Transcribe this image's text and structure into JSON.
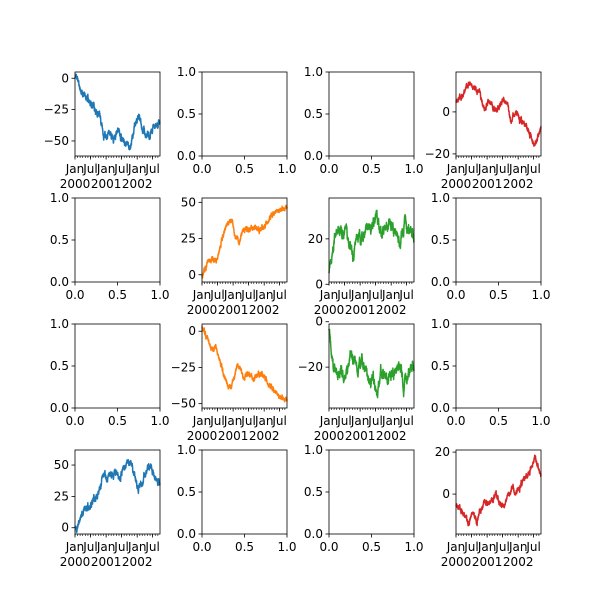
{
  "chart_data": [
    {
      "type": "line",
      "position": "row-1-col-1",
      "color": "#1f77b4",
      "empty": false,
      "x_range": [
        "2000-01-01",
        "2002-09-26"
      ],
      "ylim": [
        -62,
        5
      ],
      "yticks": [
        0,
        -25,
        -50
      ],
      "ytick_labels": [
        "0",
        "−25",
        "−50"
      ],
      "x_major_labels": [
        {
          "date": "2000-01-01",
          "label": "Jan\n2000"
        },
        {
          "date": "2000-07-01",
          "label": "Jul"
        },
        {
          "date": "2001-01-01",
          "label": "Jan\n2001"
        },
        {
          "date": "2001-07-01",
          "label": "Jul"
        },
        {
          "date": "2002-01-01",
          "label": "Jan\n2002"
        },
        {
          "date": "2002-07-01",
          "label": "Jul"
        }
      ],
      "trend": {
        "x": [
          "2000-01-01",
          "2000-01-20",
          "2000-03-10",
          "2000-05-01",
          "2000-06-15",
          "2000-08-01",
          "2000-09-10",
          "2000-10-20",
          "2000-12-01",
          "2001-01-20",
          "2001-03-01",
          "2001-04-15",
          "2001-06-01",
          "2001-07-15",
          "2001-09-01",
          "2001-10-15",
          "2001-12-01",
          "2002-01-15",
          "2002-03-01",
          "2002-04-15",
          "2002-06-01",
          "2002-07-15",
          "2002-09-26"
        ],
        "y": [
          0,
          2,
          -10,
          -15,
          -17,
          -22,
          -26,
          -30,
          -45,
          -42,
          -44,
          -46,
          -40,
          -48,
          -52,
          -54,
          -40,
          -30,
          -38,
          -45,
          -48,
          -40,
          -35
        ]
      },
      "noise_amplitude": 3.0,
      "seed": 11
    },
    {
      "type": "empty",
      "position": "row-1-col-2",
      "empty": true,
      "xlim": [
        0,
        1
      ],
      "ylim": [
        0,
        1
      ],
      "xticks": [
        "0.0",
        "0.5",
        "1.0"
      ],
      "yticks": [
        "0.0",
        "0.5",
        "1.0"
      ]
    },
    {
      "type": "empty",
      "position": "row-1-col-3",
      "empty": true,
      "xlim": [
        0,
        1
      ],
      "ylim": [
        0,
        1
      ],
      "xticks": [
        "0.0",
        "0.5",
        "1.0"
      ],
      "yticks": [
        "0.0",
        "0.5",
        "1.0"
      ]
    },
    {
      "type": "line",
      "position": "row-1-col-4",
      "color": "#d62728",
      "empty": false,
      "x_range": [
        "2000-01-01",
        "2002-09-26"
      ],
      "ylim": [
        -21,
        19
      ],
      "yticks": [
        0,
        -20
      ],
      "ytick_labels": [
        "0",
        "−20"
      ],
      "x_major_labels": [
        {
          "date": "2000-01-01",
          "label": "Jan\n2000"
        },
        {
          "date": "2000-07-01",
          "label": "Jul"
        },
        {
          "date": "2001-01-01",
          "label": "Jan\n2001"
        },
        {
          "date": "2001-07-01",
          "label": "Jul"
        },
        {
          "date": "2002-01-01",
          "label": "Jan\n2002"
        },
        {
          "date": "2002-07-01",
          "label": "Jul"
        }
      ],
      "trend": {
        "x": [
          "2000-01-01",
          "2000-03-15",
          "2000-06-01",
          "2000-07-15",
          "2000-09-01",
          "2000-10-15",
          "2000-12-01",
          "2001-01-15",
          "2001-03-01",
          "2001-04-15",
          "2001-06-01",
          "2001-07-15",
          "2001-09-01",
          "2001-10-15",
          "2001-12-01",
          "2002-01-15",
          "2002-03-01",
          "2002-04-15",
          "2002-06-01",
          "2002-07-15",
          "2002-09-26"
        ],
        "y": [
          5,
          8,
          14,
          10,
          12,
          8,
          2,
          5,
          3,
          0,
          4,
          6,
          2,
          -4,
          0,
          -3,
          -6,
          -8,
          -12,
          -17,
          -8
        ]
      },
      "noise_amplitude": 1.5,
      "seed": 21
    },
    {
      "type": "empty",
      "position": "row-2-col-1",
      "empty": true,
      "xlim": [
        0,
        1
      ],
      "ylim": [
        0,
        1
      ],
      "xticks": [
        "0.0",
        "0.5",
        "1.0"
      ],
      "yticks": [
        "0.0",
        "0.5",
        "1.0"
      ]
    },
    {
      "type": "line",
      "position": "row-2-col-2",
      "color": "#ff7f0e",
      "empty": false,
      "x_range": [
        "2000-01-01",
        "2002-09-26"
      ],
      "ylim": [
        -5,
        53
      ],
      "yticks": [
        0,
        25,
        50
      ],
      "ytick_labels": [
        "0",
        "25",
        "50"
      ],
      "x_major_labels": [
        {
          "date": "2000-01-01",
          "label": "Jan\n2000"
        },
        {
          "date": "2000-07-01",
          "label": "Jul"
        },
        {
          "date": "2001-01-01",
          "label": "Jan\n2001"
        },
        {
          "date": "2001-07-01",
          "label": "Jul"
        },
        {
          "date": "2002-01-01",
          "label": "Jan\n2002"
        },
        {
          "date": "2002-07-01",
          "label": "Jul"
        }
      ],
      "trend": {
        "x": [
          "2000-01-01",
          "2000-02-01",
          "2000-03-15",
          "2000-05-01",
          "2000-06-15",
          "2000-08-01",
          "2000-09-15",
          "2000-11-01",
          "2000-12-15",
          "2001-02-01",
          "2001-03-15",
          "2001-05-01",
          "2001-07-01",
          "2001-09-01",
          "2001-11-01",
          "2002-01-01",
          "2002-03-01",
          "2002-05-01",
          "2002-07-01",
          "2002-09-26"
        ],
        "y": [
          -2,
          2,
          8,
          12,
          10,
          20,
          30,
          37,
          38,
          26,
          23,
          32,
          30,
          33,
          30,
          32,
          38,
          42,
          45,
          47
        ]
      },
      "noise_amplitude": 2.0,
      "seed": 31
    },
    {
      "type": "line",
      "position": "row-2-col-3",
      "color": "#2ca02c",
      "empty": false,
      "x_range": [
        "2000-01-01",
        "2002-09-26"
      ],
      "ylim": [
        1,
        38
      ],
      "yticks": [
        0,
        20
      ],
      "ytick_labels": [
        "0",
        "20"
      ],
      "x_major_labels": [
        {
          "date": "2000-01-01",
          "label": "Jan\n2000"
        },
        {
          "date": "2000-07-01",
          "label": "Jul"
        },
        {
          "date": "2001-01-01",
          "label": "Jan\n2001"
        },
        {
          "date": "2001-07-01",
          "label": "Jul"
        },
        {
          "date": "2002-01-01",
          "label": "Jan\n2002"
        },
        {
          "date": "2002-07-01",
          "label": "Jul"
        }
      ],
      "trend": {
        "x": [
          "2000-01-01",
          "2000-01-20",
          "2000-03-01",
          "2000-04-15",
          "2000-06-01",
          "2000-07-15",
          "2000-09-01",
          "2000-10-15",
          "2000-12-01",
          "2001-01-15",
          "2001-03-01",
          "2001-04-15",
          "2001-06-01",
          "2001-07-15",
          "2001-09-01",
          "2001-10-15",
          "2001-12-01",
          "2002-01-15",
          "2002-03-01",
          "2002-04-15",
          "2002-06-01",
          "2002-07-15",
          "2002-09-26"
        ],
        "y": [
          4,
          10,
          20,
          24,
          22,
          25,
          16,
          14,
          22,
          18,
          22,
          26,
          25,
          32,
          22,
          24,
          26,
          24,
          22,
          18,
          28,
          24,
          20
        ]
      },
      "noise_amplitude": 2.5,
      "seed": 41
    },
    {
      "type": "empty",
      "position": "row-2-col-4",
      "empty": true,
      "xlim": [
        0,
        1
      ],
      "ylim": [
        0,
        1
      ],
      "xticks": [
        "0.0",
        "0.5",
        "1.0"
      ],
      "yticks": [
        "0.0",
        "0.5",
        "1.0"
      ]
    },
    {
      "type": "empty",
      "position": "row-3-col-1",
      "empty": true,
      "xlim": [
        0,
        1
      ],
      "ylim": [
        0,
        1
      ],
      "xticks": [
        "0.0",
        "0.5",
        "1.0"
      ],
      "yticks": [
        "0.0",
        "0.5",
        "1.0"
      ]
    },
    {
      "type": "line",
      "position": "row-3-col-2",
      "color": "#ff7f0e",
      "empty": false,
      "x_range": [
        "2000-01-01",
        "2002-09-26"
      ],
      "ylim": [
        -53,
        5
      ],
      "yticks": [
        0,
        -25,
        -50
      ],
      "ytick_labels": [
        "0",
        "−25",
        "−50"
      ],
      "x_major_labels": [
        {
          "date": "2000-01-01",
          "label": "Jan\n2000"
        },
        {
          "date": "2000-07-01",
          "label": "Jul"
        },
        {
          "date": "2001-01-01",
          "label": "Jan\n2001"
        },
        {
          "date": "2001-07-01",
          "label": "Jul"
        },
        {
          "date": "2002-01-01",
          "label": "Jan\n2002"
        },
        {
          "date": "2002-07-01",
          "label": "Jul"
        }
      ],
      "trend": {
        "x": [
          "2000-01-01",
          "2000-02-01",
          "2000-03-15",
          "2000-05-01",
          "2000-06-15",
          "2000-08-01",
          "2000-09-15",
          "2000-11-01",
          "2000-12-15",
          "2001-02-01",
          "2001-03-15",
          "2001-05-01",
          "2001-07-01",
          "2001-09-01",
          "2001-11-01",
          "2002-01-01",
          "2002-03-01",
          "2002-05-01",
          "2002-07-01",
          "2002-09-26"
        ],
        "y": [
          2,
          -2,
          -8,
          -12,
          -10,
          -20,
          -30,
          -37,
          -38,
          -26,
          -23,
          -32,
          -30,
          -33,
          -30,
          -32,
          -38,
          -42,
          -45,
          -47
        ]
      },
      "noise_amplitude": 2.0,
      "seed": 31
    },
    {
      "type": "line",
      "position": "row-3-col-3",
      "color": "#2ca02c",
      "empty": false,
      "x_range": [
        "2000-01-01",
        "2002-09-26"
      ],
      "ylim": [
        -38,
        -1
      ],
      "yticks": [
        0,
        -20
      ],
      "ytick_labels": [
        "0",
        "−20"
      ],
      "x_major_labels": [
        {
          "date": "2000-01-01",
          "label": "Jan\n2000"
        },
        {
          "date": "2000-07-01",
          "label": "Jul"
        },
        {
          "date": "2001-01-01",
          "label": "Jan\n2001"
        },
        {
          "date": "2001-07-01",
          "label": "Jul"
        },
        {
          "date": "2002-01-01",
          "label": "Jan\n2002"
        },
        {
          "date": "2002-07-01",
          "label": "Jul"
        }
      ],
      "trend": {
        "x": [
          "2000-01-01",
          "2000-01-20",
          "2000-03-01",
          "2000-04-15",
          "2000-06-01",
          "2000-07-15",
          "2000-09-01",
          "2000-10-15",
          "2000-12-01",
          "2001-01-15",
          "2001-03-01",
          "2001-04-15",
          "2001-06-01",
          "2001-07-15",
          "2001-09-01",
          "2001-10-15",
          "2001-12-01",
          "2002-01-15",
          "2002-03-01",
          "2002-04-15",
          "2002-06-01",
          "2002-07-15",
          "2002-09-26"
        ],
        "y": [
          -4,
          -10,
          -20,
          -24,
          -22,
          -25,
          -16,
          -14,
          -22,
          -18,
          -22,
          -26,
          -25,
          -32,
          -22,
          -24,
          -26,
          -24,
          -22,
          -18,
          -28,
          -24,
          -20
        ]
      },
      "noise_amplitude": 2.5,
      "seed": 41
    },
    {
      "type": "empty",
      "position": "row-3-col-4",
      "empty": true,
      "xlim": [
        0,
        1
      ],
      "ylim": [
        0,
        1
      ],
      "xticks": [
        "0.0",
        "0.5",
        "1.0"
      ],
      "yticks": [
        "0.0",
        "0.5",
        "1.0"
      ]
    },
    {
      "type": "line",
      "position": "row-4-col-1",
      "color": "#1f77b4",
      "empty": false,
      "x_range": [
        "2000-01-01",
        "2002-09-26"
      ],
      "ylim": [
        -5,
        62
      ],
      "yticks": [
        0,
        25,
        50
      ],
      "ytick_labels": [
        "0",
        "25",
        "50"
      ],
      "x_major_labels": [
        {
          "date": "2000-01-01",
          "label": "Jan\n2000"
        },
        {
          "date": "2000-07-01",
          "label": "Jul"
        },
        {
          "date": "2001-01-01",
          "label": "Jan\n2001"
        },
        {
          "date": "2001-07-01",
          "label": "Jul"
        },
        {
          "date": "2002-01-01",
          "label": "Jan\n2002"
        },
        {
          "date": "2002-07-01",
          "label": "Jul"
        }
      ],
      "trend": {
        "x": [
          "2000-01-01",
          "2000-01-20",
          "2000-03-10",
          "2000-05-01",
          "2000-06-15",
          "2000-08-01",
          "2000-09-10",
          "2000-10-20",
          "2000-12-01",
          "2001-01-20",
          "2001-03-01",
          "2001-04-15",
          "2001-06-01",
          "2001-07-15",
          "2001-09-01",
          "2001-10-15",
          "2001-12-01",
          "2002-01-15",
          "2002-03-01",
          "2002-04-15",
          "2002-06-01",
          "2002-07-15",
          "2002-09-26"
        ],
        "y": [
          0,
          -2,
          10,
          15,
          17,
          22,
          26,
          30,
          45,
          42,
          44,
          46,
          40,
          48,
          52,
          54,
          40,
          30,
          38,
          45,
          48,
          40,
          35
        ]
      },
      "noise_amplitude": 3.0,
      "seed": 11
    },
    {
      "type": "empty",
      "position": "row-4-col-2",
      "empty": true,
      "xlim": [
        0,
        1
      ],
      "ylim": [
        0,
        1
      ],
      "xticks": [
        "0.0",
        "0.5",
        "1.0"
      ],
      "yticks": [
        "0.0",
        "0.5",
        "1.0"
      ]
    },
    {
      "type": "empty",
      "position": "row-4-col-3",
      "empty": true,
      "xlim": [
        0,
        1
      ],
      "ylim": [
        0,
        1
      ],
      "xticks": [
        "0.0",
        "0.5",
        "1.0"
      ],
      "yticks": [
        "0.0",
        "0.5",
        "1.0"
      ]
    },
    {
      "type": "line",
      "position": "row-4-col-4",
      "color": "#d62728",
      "empty": false,
      "x_range": [
        "2000-01-01",
        "2002-09-26"
      ],
      "ylim": [
        -19,
        21
      ],
      "yticks": [
        0,
        20
      ],
      "ytick_labels": [
        "0",
        "20"
      ],
      "x_major_labels": [
        {
          "date": "2000-01-01",
          "label": "Jan\n2000"
        },
        {
          "date": "2000-07-01",
          "label": "Jul"
        },
        {
          "date": "2001-01-01",
          "label": "Jan\n2001"
        },
        {
          "date": "2001-07-01",
          "label": "Jul"
        },
        {
          "date": "2002-01-01",
          "label": "Jan\n2002"
        },
        {
          "date": "2002-07-01",
          "label": "Jul"
        }
      ],
      "trend": {
        "x": [
          "2000-01-01",
          "2000-03-15",
          "2000-06-01",
          "2000-07-15",
          "2000-09-01",
          "2000-10-15",
          "2000-12-01",
          "2001-01-15",
          "2001-03-01",
          "2001-04-15",
          "2001-06-01",
          "2001-07-15",
          "2001-09-01",
          "2001-10-15",
          "2001-12-01",
          "2002-01-15",
          "2002-03-01",
          "2002-04-15",
          "2002-06-01",
          "2002-07-15",
          "2002-09-26"
        ],
        "y": [
          -5,
          -8,
          -14,
          -10,
          -12,
          -8,
          -2,
          -5,
          -3,
          0,
          -4,
          -6,
          -2,
          4,
          0,
          3,
          6,
          8,
          12,
          17,
          8
        ]
      },
      "noise_amplitude": 1.5,
      "seed": 21
    }
  ]
}
